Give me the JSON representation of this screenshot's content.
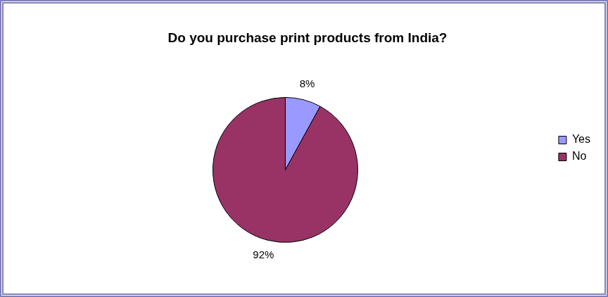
{
  "chart_data": {
    "type": "pie",
    "title": "Do you purchase print products from India?",
    "categories": [
      "Yes",
      "No"
    ],
    "values": [
      8,
      92
    ],
    "value_labels": [
      "8%",
      "92%"
    ],
    "colors": [
      "#9999ff",
      "#993366"
    ],
    "legend": "right",
    "data_labels": true
  }
}
